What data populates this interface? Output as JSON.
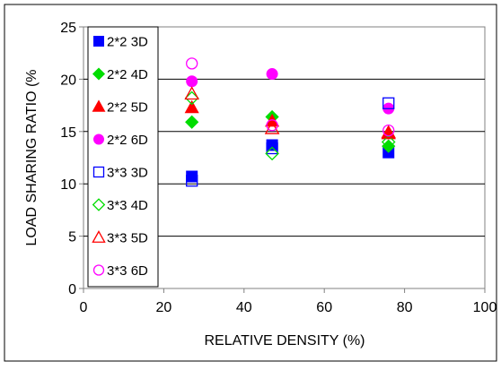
{
  "chart_data": {
    "type": "scatter",
    "xlabel": "RELATIVE DENSITY (%)",
    "ylabel": "LOAD SHARING RATIO (%",
    "xlim": [
      0,
      100
    ],
    "ylim": [
      0,
      25
    ],
    "xticks": [
      "0",
      "20",
      "40",
      "60",
      "80",
      "100"
    ],
    "yticks": [
      "0",
      "5",
      "10",
      "15",
      "20",
      "25"
    ],
    "grid": "horizontal",
    "legend_position": "left-inside",
    "series": [
      {
        "name": "2*2 3D",
        "marker": "square",
        "filled": true,
        "color": "#0000ff",
        "points": [
          [
            27,
            10.7
          ],
          [
            47,
            13.7
          ],
          [
            76,
            13.0
          ]
        ]
      },
      {
        "name": "2*2 4D",
        "marker": "diamond",
        "filled": true,
        "color": "#00dd00",
        "points": [
          [
            27,
            15.9
          ],
          [
            47,
            16.4
          ],
          [
            76,
            13.6
          ]
        ]
      },
      {
        "name": "2*2 5D",
        "marker": "triangle",
        "filled": true,
        "color": "#ff0000",
        "points": [
          [
            27,
            17.3
          ],
          [
            47,
            16.0
          ],
          [
            76,
            14.8
          ]
        ]
      },
      {
        "name": "2*2 6D",
        "marker": "circle",
        "filled": true,
        "color": "#ff00ff",
        "points": [
          [
            27,
            19.8
          ],
          [
            47,
            20.5
          ],
          [
            76,
            17.2
          ]
        ]
      },
      {
        "name": "3*3 3D",
        "marker": "square",
        "filled": false,
        "color": "#0000ff",
        "points": [
          [
            27,
            10.3
          ],
          [
            47,
            13.4
          ],
          [
            76,
            17.7
          ]
        ]
      },
      {
        "name": "3*3 4D",
        "marker": "diamond",
        "filled": false,
        "color": "#00dd00",
        "points": [
          [
            27,
            18.2
          ],
          [
            47,
            12.9
          ],
          [
            76,
            14.0
          ]
        ]
      },
      {
        "name": "3*3 5D",
        "marker": "triangle",
        "filled": false,
        "color": "#ff0000",
        "points": [
          [
            27,
            18.6
          ],
          [
            47,
            15.3
          ],
          [
            76,
            14.9
          ]
        ]
      },
      {
        "name": "3*3 6D",
        "marker": "circle",
        "filled": false,
        "color": "#ff00ff",
        "points": [
          [
            27,
            21.5
          ],
          [
            47,
            15.6
          ],
          [
            76,
            15.1
          ]
        ]
      }
    ]
  }
}
